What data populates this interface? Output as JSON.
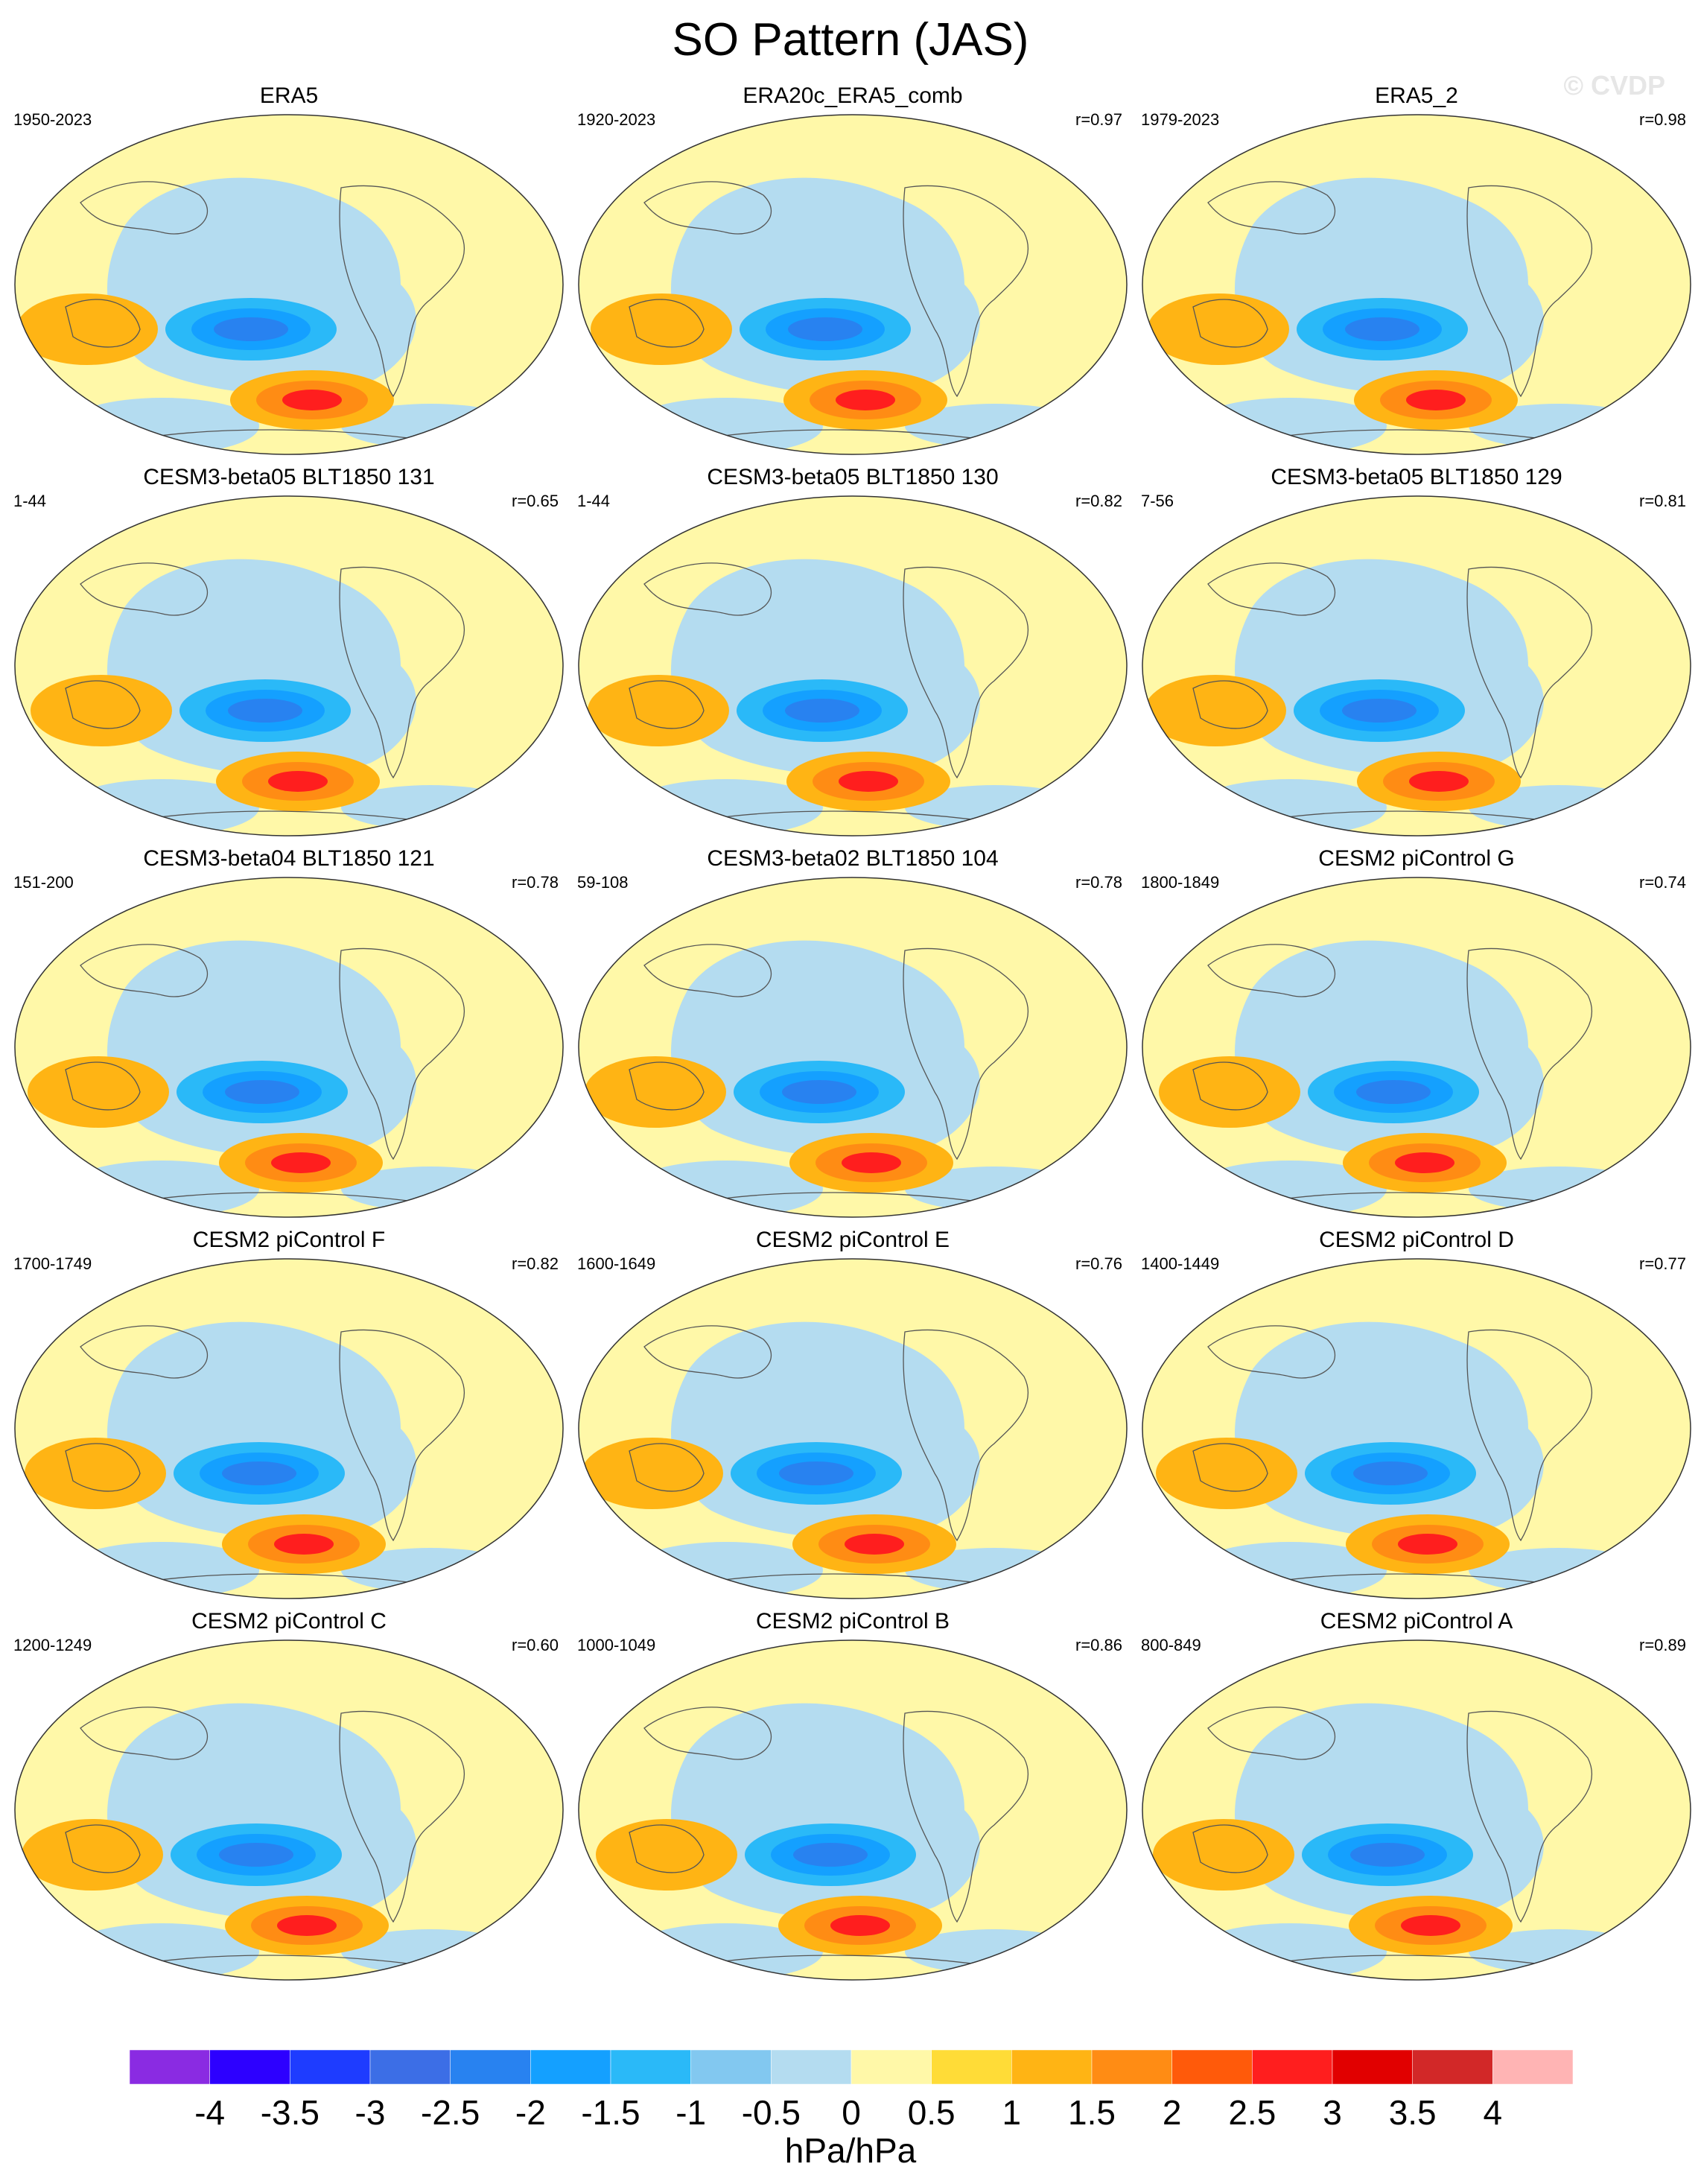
{
  "title": "SO Pattern (JAS)",
  "watermark": "© CVDP",
  "panels": [
    {
      "title": "ERA5",
      "years": "1950-2023",
      "r": ""
    },
    {
      "title": "ERA20c_ERA5_comb",
      "years": "1920-2023",
      "r": "r=0.97"
    },
    {
      "title": "ERA5_2",
      "years": "1979-2023",
      "r": "r=0.98"
    },
    {
      "title": "CESM3-beta05 BLT1850 131",
      "years": "1-44",
      "r": "r=0.65"
    },
    {
      "title": "CESM3-beta05 BLT1850 130",
      "years": "1-44",
      "r": "r=0.82"
    },
    {
      "title": "CESM3-beta05 BLT1850 129",
      "years": "7-56",
      "r": "r=0.81"
    },
    {
      "title": "CESM3-beta04 BLT1850 121",
      "years": "151-200",
      "r": "r=0.78"
    },
    {
      "title": "CESM3-beta02 BLT1850 104",
      "years": "59-108",
      "r": "r=0.78"
    },
    {
      "title": "CESM2 piControl G",
      "years": "1800-1849",
      "r": "r=0.74"
    },
    {
      "title": "CESM2 piControl F",
      "years": "1700-1749",
      "r": "r=0.82"
    },
    {
      "title": "CESM2 piControl E",
      "years": "1600-1649",
      "r": "r=0.76"
    },
    {
      "title": "CESM2 piControl D",
      "years": "1400-1449",
      "r": "r=0.77"
    },
    {
      "title": "CESM2 piControl C",
      "years": "1200-1249",
      "r": "r=0.60"
    },
    {
      "title": "CESM2 piControl B",
      "years": "1000-1049",
      "r": "r=0.86"
    },
    {
      "title": "CESM2 piControl A",
      "years": "800-849",
      "r": "r=0.89"
    }
  ],
  "chart_data": {
    "type": "heatmap",
    "projection": "global ellipse map",
    "layout": "5 rows x 3 columns",
    "panel_shading_features": [
      {
        "label": "Pacific negative center (blue)",
        "value": -2.5
      },
      {
        "label": "Southern Ocean positive center (orange)",
        "value": 2.5
      },
      {
        "label": "Australia / Indian Ocean positive (yellow-orange)",
        "value": 1.0
      },
      {
        "label": "Broad Pacific negative (light blue)",
        "value": -0.5
      },
      {
        "label": "Background positive (pale yellow)",
        "value": 0.25
      }
    ],
    "colorbar": {
      "tick_labels": [
        "-4",
        "-3.5",
        "-3",
        "-2.5",
        "-2",
        "-1.5",
        "-1",
        "-0.5",
        "0",
        "0.5",
        "1",
        "1.5",
        "2",
        "2.5",
        "3",
        "3.5",
        "4"
      ],
      "levels": [
        -4,
        -3.5,
        -3,
        -2.5,
        -2,
        -1.5,
        -1,
        -0.5,
        0,
        0.5,
        1,
        1.5,
        2,
        2.5,
        3,
        3.5,
        4
      ],
      "colors": [
        "#8a2be2",
        "#2d00ff",
        "#1e3cff",
        "#3c6ee6",
        "#2882f0",
        "#14a0ff",
        "#2ab9f8",
        "#82c8f0",
        "#b4dcf0",
        "#fff8a8",
        "#ffdc37",
        "#ffb414",
        "#ff8c14",
        "#ff5a0a",
        "#ff1e1e",
        "#e10000",
        "#d22828",
        "#ffb4b4"
      ],
      "units": "hPa/hPa"
    }
  }
}
